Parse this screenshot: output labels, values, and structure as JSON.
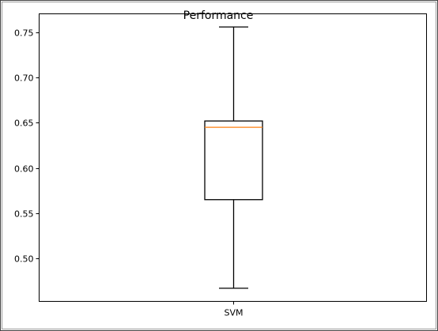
{
  "chart_data": {
    "type": "box",
    "title": "Performance",
    "categories": [
      "SVM"
    ],
    "series": [
      {
        "values": {
          "whisker_low": 0.467,
          "q1": 0.565,
          "median": 0.645,
          "q3": 0.652,
          "whisker_high": 0.756
        }
      }
    ],
    "ylim": [
      0.4525,
      0.7705
    ],
    "yticks": [
      0.5,
      0.55,
      0.6,
      0.65,
      0.7,
      0.75
    ],
    "ytick_labels": [
      "0.50",
      "0.55",
      "0.60",
      "0.65",
      "0.70",
      "0.75"
    ],
    "xlabel": "",
    "ylabel": "",
    "grid": false,
    "colors": {
      "box": "#000000",
      "median": "#ff7f0e",
      "background": "#ffffff"
    }
  }
}
